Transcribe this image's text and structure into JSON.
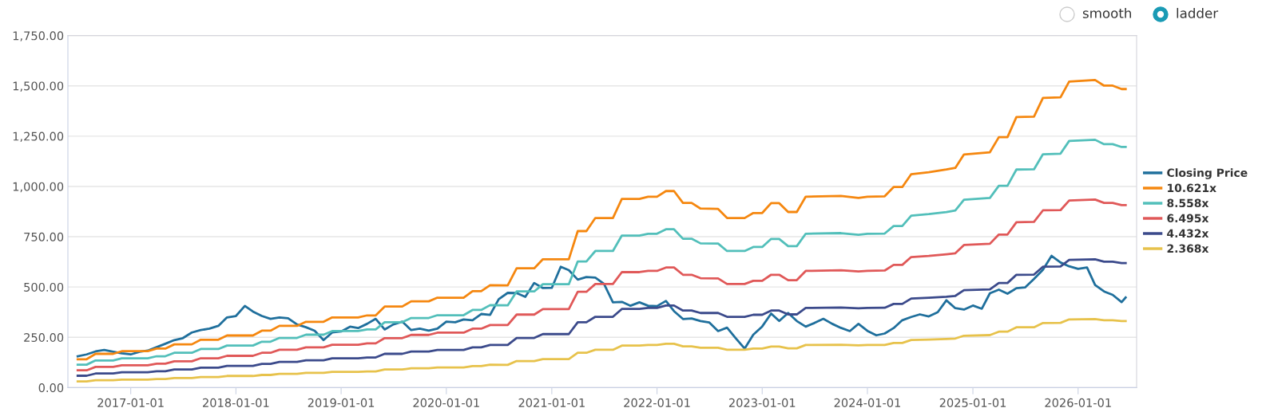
{
  "chart_data": {
    "type": "line",
    "x": [
      "2016-07",
      "2016-08",
      "2016-09",
      "2016-11",
      "2016-12",
      "2017-03",
      "2017-04",
      "2017-05",
      "2017-06",
      "2017-08",
      "2017-09",
      "2017-11",
      "2017-12",
      "2018-03",
      "2018-04",
      "2018-05",
      "2018-06",
      "2018-08",
      "2018-09",
      "2018-11",
      "2018-12",
      "2019-03",
      "2019-04",
      "2019-05",
      "2019-06",
      "2019-08",
      "2019-09",
      "2019-11",
      "2019-12",
      "2020-03",
      "2020-04",
      "2020-05",
      "2020-06",
      "2020-08",
      "2020-09",
      "2020-11",
      "2020-12",
      "2021-03",
      "2021-04",
      "2021-05",
      "2021-06",
      "2021-08",
      "2021-09",
      "2021-11",
      "2021-12",
      "2022-01",
      "2022-02",
      "2022-03",
      "2022-04",
      "2022-05",
      "2022-06",
      "2022-08",
      "2022-09",
      "2022-11",
      "2022-12",
      "2023-01",
      "2023-02",
      "2023-03",
      "2023-04",
      "2023-05",
      "2023-06",
      "2023-10",
      "2023-12",
      "2024-01",
      "2024-03",
      "2024-04",
      "2024-05",
      "2024-06",
      "2024-08",
      "2024-10",
      "2024-11",
      "2024-12",
      "2025-03",
      "2025-04",
      "2025-05",
      "2025-06",
      "2025-08",
      "2025-09",
      "2025-11",
      "2025-12",
      "2026-03",
      "2026-04",
      "2026-05",
      "2026-06",
      "2026-06-15"
    ],
    "series": [
      {
        "name": "Closing Price",
        "color": "#1f6f9c",
        "x": [
          "2016-07",
          "2016-08",
          "2016-09",
          "2016-10",
          "2016-11",
          "2016-12",
          "2017-01",
          "2017-02",
          "2017-03",
          "2017-04",
          "2017-05",
          "2017-06",
          "2017-07",
          "2017-08",
          "2017-09",
          "2017-10",
          "2017-11",
          "2017-12",
          "2018-01",
          "2018-02",
          "2018-03",
          "2018-04",
          "2018-05",
          "2018-06",
          "2018-07",
          "2018-08",
          "2018-09",
          "2018-10",
          "2018-11",
          "2018-12",
          "2019-01",
          "2019-02",
          "2019-03",
          "2019-04",
          "2019-05",
          "2019-06",
          "2019-07",
          "2019-08",
          "2019-09",
          "2019-10",
          "2019-11",
          "2019-12",
          "2020-01",
          "2020-02",
          "2020-03",
          "2020-04",
          "2020-05",
          "2020-06",
          "2020-07",
          "2020-08",
          "2020-09",
          "2020-10",
          "2020-11",
          "2020-12",
          "2021-01",
          "2021-02",
          "2021-03",
          "2021-04",
          "2021-05",
          "2021-06",
          "2021-07",
          "2021-08",
          "2021-09",
          "2021-10",
          "2021-11",
          "2021-12",
          "2022-01",
          "2022-02",
          "2022-03",
          "2022-04",
          "2022-05",
          "2022-06",
          "2022-07",
          "2022-08",
          "2022-09",
          "2022-10",
          "2022-11",
          "2022-12",
          "2023-01",
          "2023-02",
          "2023-03",
          "2023-04",
          "2023-05",
          "2023-06",
          "2023-07",
          "2023-08",
          "2023-09",
          "2023-10",
          "2023-11",
          "2023-12",
          "2024-01",
          "2024-02",
          "2024-03",
          "2024-04",
          "2024-05",
          "2024-06",
          "2024-07",
          "2024-08",
          "2024-09",
          "2024-10",
          "2024-11",
          "2024-12",
          "2025-01",
          "2025-02",
          "2025-03",
          "2025-04",
          "2025-05",
          "2025-06",
          "2025-07",
          "2025-08",
          "2025-09",
          "2025-10",
          "2025-11",
          "2025-12",
          "2026-01",
          "2026-02",
          "2026-03",
          "2026-04",
          "2026-05",
          "2026-06",
          "2026-06-15"
        ],
        "values": [
          156,
          165,
          180,
          187,
          178,
          170,
          165,
          178,
          184,
          201,
          218,
          236,
          246,
          274,
          286,
          293,
          307,
          349,
          356,
          406,
          378,
          356,
          342,
          349,
          345,
          314,
          300,
          283,
          236,
          274,
          279,
          303,
          296,
          317,
          342,
          289,
          314,
          328,
          286,
          293,
          283,
          293,
          328,
          325,
          339,
          335,
          366,
          362,
          440,
          471,
          470,
          451,
          520,
          495,
          496,
          601,
          584,
          537,
          550,
          547,
          516,
          424,
          426,
          407,
          424,
          407,
          405,
          431,
          380,
          341,
          344,
          331,
          324,
          281,
          298,
          246,
          194,
          263,
          304,
          368,
          331,
          371,
          331,
          303,
          321,
          342,
          317,
          297,
          281,
          317,
          282,
          260,
          269,
          296,
          335,
          351,
          364,
          354,
          375,
          434,
          395,
          388,
          408,
          392,
          469,
          487,
          467,
          494,
          498,
          540,
          586,
          655,
          622,
          603,
          590,
          597,
          510,
          478,
          461,
          425,
          448
        ]
      },
      {
        "name": "10.621x",
        "color": "#f5870f",
        "values": [
          141,
          141,
          168,
          168,
          181,
          181,
          194,
          194,
          215,
          215,
          238,
          238,
          259,
          259,
          283,
          283,
          307,
          307,
          327,
          327,
          349,
          349,
          359,
          359,
          403,
          403,
          429,
          429,
          447,
          447,
          479,
          479,
          509,
          508,
          593,
          593,
          638,
          638,
          778,
          778,
          843,
          843,
          938,
          938,
          949,
          949,
          977,
          977,
          918,
          918,
          890,
          888,
          843,
          843,
          868,
          868,
          917,
          917,
          873,
          873,
          949,
          953,
          943,
          949,
          951,
          997,
          997,
          1061,
          1071,
          1084,
          1092,
          1159,
          1170,
          1245,
          1245,
          1345,
          1347,
          1440,
          1443,
          1521,
          1529,
          1501,
          1501,
          1484,
          1484
        ]
      },
      {
        "name": "8.558x",
        "color": "#52bfba",
        "values": [
          114,
          114,
          135,
          135,
          146,
          146,
          156,
          156,
          173,
          173,
          192,
          192,
          209,
          209,
          228,
          228,
          247,
          247,
          263,
          263,
          281,
          281,
          289,
          289,
          325,
          325,
          346,
          346,
          360,
          360,
          386,
          386,
          410,
          409,
          478,
          478,
          514,
          514,
          627,
          627,
          679,
          679,
          756,
          756,
          765,
          765,
          787,
          787,
          740,
          740,
          717,
          716,
          679,
          679,
          699,
          699,
          739,
          739,
          703,
          703,
          765,
          768,
          760,
          765,
          766,
          803,
          803,
          855,
          863,
          873,
          880,
          934,
          943,
          1003,
          1003,
          1084,
          1085,
          1160,
          1163,
          1226,
          1232,
          1210,
          1210,
          1196,
          1196
        ]
      },
      {
        "name": "6.495x",
        "color": "#e05858",
        "values": [
          86,
          86,
          103,
          103,
          111,
          111,
          119,
          119,
          131,
          131,
          146,
          146,
          158,
          158,
          173,
          173,
          188,
          188,
          200,
          200,
          213,
          213,
          220,
          220,
          246,
          246,
          262,
          262,
          273,
          273,
          293,
          293,
          311,
          311,
          363,
          363,
          390,
          390,
          476,
          476,
          515,
          515,
          574,
          574,
          580,
          580,
          597,
          597,
          561,
          561,
          544,
          543,
          515,
          515,
          531,
          531,
          561,
          561,
          534,
          534,
          580,
          583,
          577,
          580,
          582,
          610,
          610,
          649,
          655,
          663,
          668,
          709,
          715,
          761,
          761,
          822,
          824,
          881,
          882,
          930,
          935,
          918,
          918,
          907,
          907
        ]
      },
      {
        "name": "4.432x",
        "color": "#3b4a8b",
        "values": [
          59,
          59,
          70,
          70,
          76,
          76,
          81,
          81,
          90,
          90,
          99,
          99,
          108,
          108,
          118,
          118,
          128,
          128,
          136,
          136,
          146,
          146,
          150,
          150,
          168,
          168,
          179,
          179,
          187,
          187,
          200,
          200,
          212,
          212,
          247,
          247,
          266,
          266,
          325,
          325,
          352,
          352,
          391,
          391,
          396,
          396,
          408,
          408,
          383,
          383,
          371,
          371,
          352,
          352,
          362,
          362,
          383,
          383,
          364,
          364,
          396,
          398,
          394,
          396,
          397,
          416,
          416,
          443,
          447,
          452,
          456,
          484,
          488,
          520,
          520,
          561,
          562,
          601,
          602,
          635,
          638,
          626,
          626,
          619,
          619
        ]
      },
      {
        "name": "2.368x",
        "color": "#e7c24b",
        "values": [
          31,
          31,
          37,
          37,
          40,
          40,
          43,
          43,
          48,
          48,
          53,
          53,
          58,
          58,
          63,
          63,
          68,
          68,
          73,
          73,
          78,
          78,
          80,
          80,
          90,
          90,
          96,
          96,
          100,
          100,
          107,
          107,
          114,
          113,
          132,
          132,
          142,
          142,
          173,
          173,
          188,
          188,
          209,
          209,
          212,
          212,
          218,
          218,
          205,
          205,
          198,
          198,
          188,
          188,
          194,
          194,
          204,
          204,
          195,
          195,
          212,
          213,
          210,
          212,
          212,
          222,
          222,
          237,
          239,
          242,
          244,
          258,
          261,
          278,
          278,
          300,
          300,
          321,
          322,
          339,
          341,
          335,
          335,
          331,
          331
        ]
      }
    ],
    "xlim": [
      "2016-05-28",
      "2026-07-23"
    ],
    "xticks": [
      {
        "value": "2017-01-01",
        "label": "2017-01-01"
      },
      {
        "value": "2018-01-01",
        "label": "2018-01-01"
      },
      {
        "value": "2019-01-01",
        "label": "2019-01-01"
      },
      {
        "value": "2020-01-01",
        "label": "2020-01-01"
      },
      {
        "value": "2021-01-01",
        "label": "2021-01-01"
      },
      {
        "value": "2022-01-01",
        "label": "2022-01-01"
      },
      {
        "value": "2023-01-01",
        "label": "2023-01-01"
      },
      {
        "value": "2024-01-01",
        "label": "2024-01-01"
      },
      {
        "value": "2025-01-01",
        "label": "2025-01-01"
      },
      {
        "value": "2026-01-01",
        "label": "2026-01-01"
      }
    ],
    "ylim": [
      0,
      1750
    ],
    "yticks": [
      {
        "value": 0,
        "label": "0.00"
      },
      {
        "value": 250,
        "label": "250.00"
      },
      {
        "value": 500,
        "label": "500.00"
      },
      {
        "value": 750,
        "label": "750.00"
      },
      {
        "value": 1000,
        "label": "1,000.00"
      },
      {
        "value": 1250,
        "label": "1,250.00"
      },
      {
        "value": 1500,
        "label": "1,500.00"
      },
      {
        "value": 1750,
        "label": "1,750.00"
      }
    ],
    "grid": "y",
    "legend": "right",
    "marker": "none",
    "line_style": "solid",
    "annotations": [
      "smooth",
      "ladder"
    ]
  }
}
